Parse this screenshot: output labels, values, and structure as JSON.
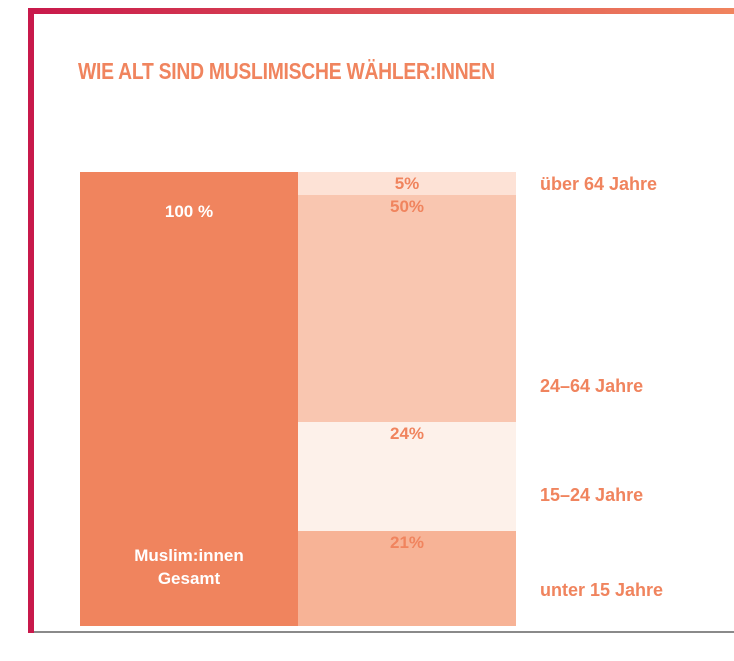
{
  "chart_data": {
    "type": "stacked_bar",
    "title": "WIE ALT SIND MUSLIMISCHE WÄHLER:INNEN",
    "ylim": [
      0,
      100
    ],
    "total": {
      "name": "Muslim:innen Gesamt",
      "value": 100,
      "value_label": "100 %",
      "color": "#f0845e"
    },
    "series": [
      {
        "name": "unter 15 Jahre",
        "value": 21,
        "value_label": "21%",
        "color": "#f7b396"
      },
      {
        "name": "15–24 Jahre",
        "value": 24,
        "value_label": "24%",
        "color": "#fdf1ea"
      },
      {
        "name": "24–64 Jahre",
        "value": 50,
        "value_label": "50%",
        "color": "#f9c6b0"
      },
      {
        "name": "über 64 Jahre",
        "value": 5,
        "value_label": "5%",
        "color": "#fde2d6"
      }
    ]
  }
}
